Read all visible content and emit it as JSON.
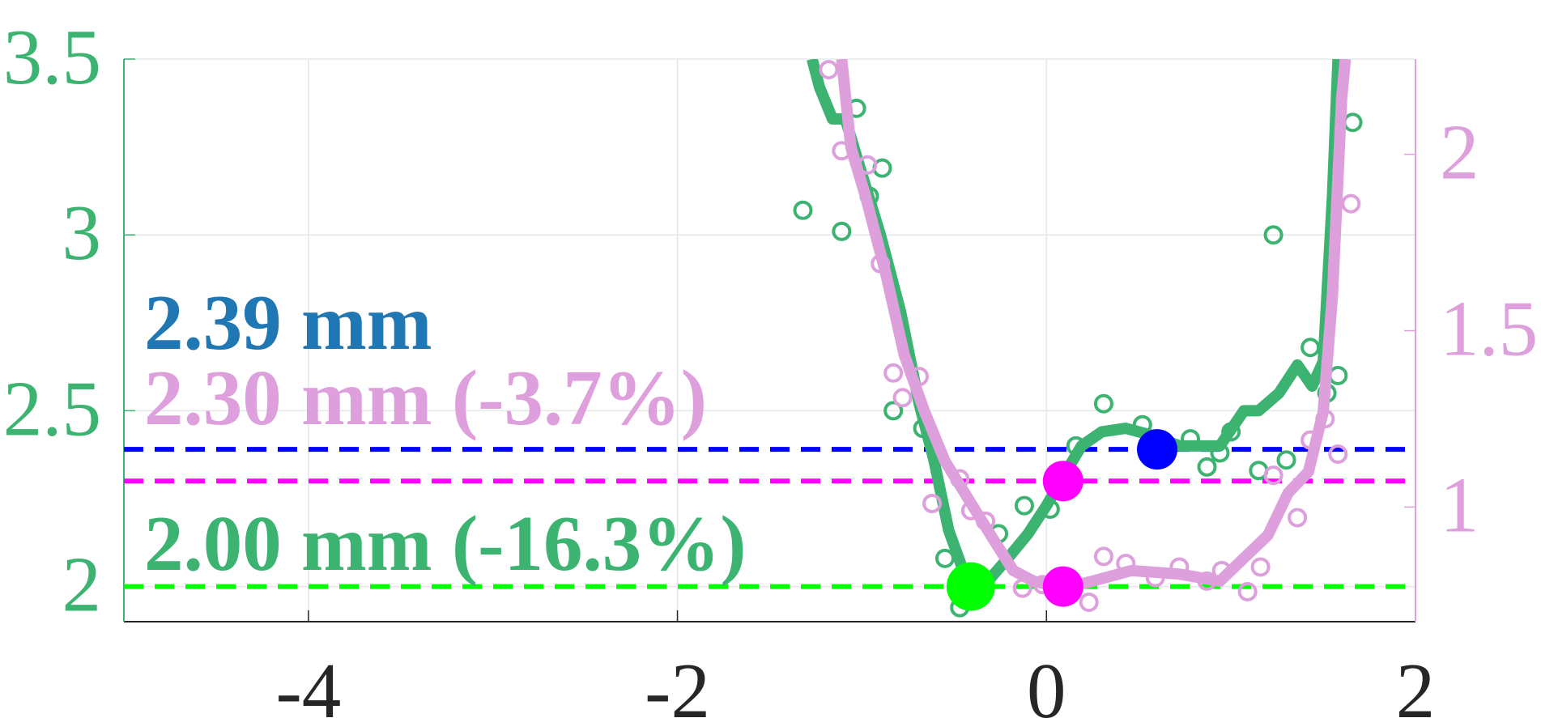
{
  "chart_data": {
    "type": "line",
    "xlim": [
      -5,
      2
    ],
    "xticks": [
      -4,
      -2,
      0,
      2
    ],
    "ylim": [
      1.9,
      3.5
    ],
    "yticks": [
      2,
      2.5,
      3,
      3.5
    ],
    "y2lim": [
      0.675,
      2.27
    ],
    "y2ticks": [
      1,
      1.5,
      2
    ],
    "grid": true,
    "y_color": "#3cb371",
    "y2_color": "#dda0dd",
    "series": [
      {
        "color": "#3cb371",
        "style": "line",
        "x": [
          -1.27,
          -1.23,
          -1.16,
          -1.09,
          -1.01,
          -0.9,
          -0.79,
          -0.69,
          -0.61,
          -0.53,
          -0.42,
          -0.31,
          -0.21,
          -0.1,
          0,
          0.11,
          0.19,
          0.3,
          0.43,
          0.57,
          0.72,
          0.94,
          1.07,
          1.15,
          1.26,
          1.36,
          1.44,
          1.5,
          1.55,
          1.58
        ],
        "values": [
          3.5,
          3.42,
          3.33,
          3.33,
          3.19,
          3.0,
          2.78,
          2.52,
          2.36,
          2.16,
          2.0,
          2.02,
          2.08,
          2.15,
          2.23,
          2.33,
          2.4,
          2.44,
          2.45,
          2.43,
          2.4,
          2.4,
          2.5,
          2.5,
          2.55,
          2.63,
          2.57,
          2.64,
          3.11,
          3.5
        ]
      },
      {
        "color": "#3cb371",
        "style": "scatter",
        "x": [
          -1.32,
          -1.11,
          -1.03,
          -0.89,
          -0.96,
          -0.83,
          -0.67,
          -0.55,
          -0.47,
          -0.26,
          -0.12,
          0.02,
          0.16,
          0.31,
          0.52,
          0.78,
          0.87,
          0.94,
          1.0,
          1.15,
          1.23,
          1.3,
          1.43,
          1.52,
          1.58,
          1.66
        ],
        "values": [
          3.07,
          3.01,
          3.36,
          3.19,
          3.11,
          2.5,
          2.45,
          2.08,
          1.94,
          2.15,
          2.23,
          2.22,
          2.4,
          2.52,
          2.46,
          2.42,
          2.34,
          2.38,
          2.44,
          2.33,
          3.0,
          2.36,
          2.68,
          2.55,
          2.6,
          3.32
        ]
      },
      {
        "color": "#dda0dd",
        "style": "line",
        "axis": "y2",
        "x": [
          -1.11,
          -1.06,
          -0.98,
          -0.87,
          -0.77,
          -0.66,
          -0.55,
          -0.42,
          -0.29,
          -0.18,
          -0.07,
          0.09,
          0.25,
          0.46,
          0.72,
          0.94,
          1.04,
          1.2,
          1.31,
          1.42,
          1.5,
          1.55,
          1.6,
          1.62
        ],
        "values": [
          2.27,
          2.02,
          1.88,
          1.66,
          1.43,
          1.27,
          1.13,
          1.02,
          0.91,
          0.82,
          0.79,
          0.77,
          0.79,
          0.82,
          0.81,
          0.79,
          0.84,
          0.92,
          1.04,
          1.1,
          1.27,
          1.6,
          2.16,
          2.27
        ]
      },
      {
        "color": "#dda0dd",
        "style": "scatter",
        "axis": "y2",
        "x": [
          -1.18,
          -1.11,
          -0.97,
          -0.9,
          -0.83,
          -0.69,
          -0.78,
          -0.62,
          -0.47,
          -0.41,
          -0.33,
          -0.13,
          -0.02,
          0.23,
          0.31,
          0.43,
          0.59,
          0.72,
          0.87,
          0.95,
          1.09,
          1.16,
          1.23,
          1.36,
          1.43,
          1.51,
          1.58,
          1.65
        ],
        "values": [
          2.24,
          2.01,
          1.97,
          1.69,
          1.38,
          1.37,
          1.31,
          1.01,
          1.08,
          0.99,
          0.96,
          0.77,
          0.78,
          0.73,
          0.86,
          0.84,
          0.8,
          0.83,
          0.79,
          0.82,
          0.76,
          0.83,
          1.09,
          0.97,
          1.19,
          1.25,
          1.15,
          1.86
        ]
      }
    ],
    "hlines": [
      {
        "y": 2.39,
        "color": "#0000ff"
      },
      {
        "y": 2.3,
        "color": "#ff00ff"
      },
      {
        "y": 2.0,
        "color": "#00ff00"
      }
    ],
    "markers": [
      {
        "x": 0.6,
        "y": 2.39,
        "color": "#0000ff"
      },
      {
        "x": 0.09,
        "y": 2.3,
        "color": "#ff00ff"
      },
      {
        "x": -0.41,
        "y": 2.0,
        "color": "#00ff00"
      },
      {
        "x": 0.09,
        "y": 2.0,
        "color": "#ff00ff"
      }
    ],
    "annotations": [
      {
        "text": "2.39 mm",
        "color": "#1f77b4"
      },
      {
        "text": "2.30 mm (-3.7%)",
        "color": "#dda0dd"
      },
      {
        "text": "2.00 mm (-16.3%)",
        "color": "#3cb371"
      }
    ]
  }
}
